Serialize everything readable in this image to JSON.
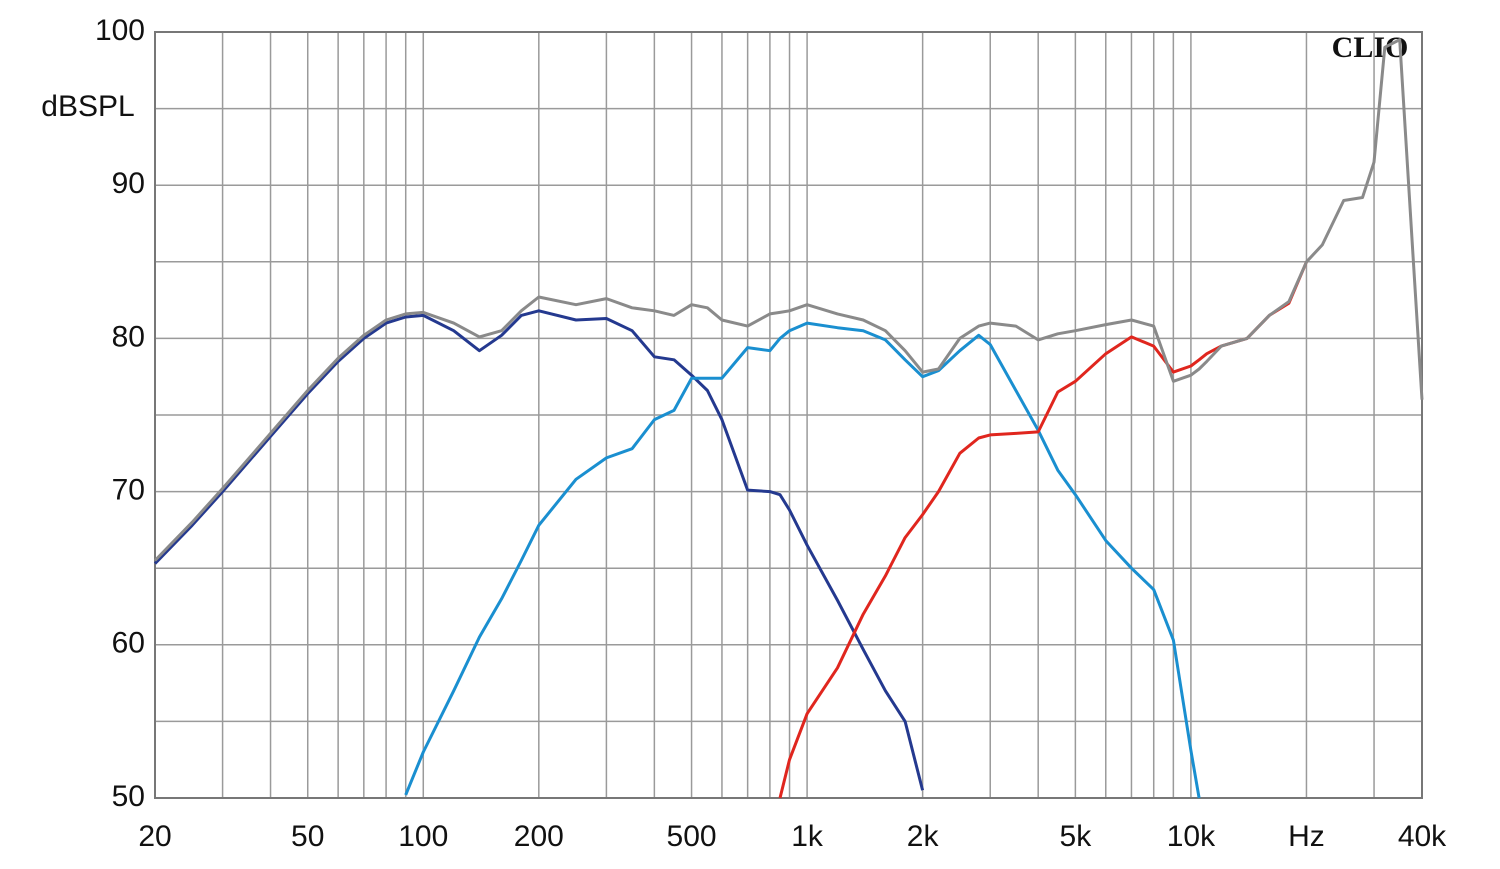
{
  "chart_data": {
    "type": "line",
    "ylabel": "dBSPL",
    "annotation": "CLIO",
    "log_x": true,
    "grid": true,
    "xlim": [
      20,
      40000
    ],
    "ylim": [
      50,
      100
    ],
    "xticks": [
      20,
      50,
      100,
      200,
      500,
      {
        "value": 1000,
        "label": "1k"
      },
      {
        "value": 2000,
        "label": "2k"
      },
      {
        "value": 5000,
        "label": "5k"
      },
      {
        "value": 10000,
        "label": "10k"
      },
      {
        "value": 20000,
        "label": "Hz"
      },
      {
        "value": 40000,
        "label": "40k"
      }
    ],
    "x_minor_ticks": [
      30,
      40,
      60,
      70,
      80,
      90,
      300,
      400,
      600,
      700,
      800,
      900,
      3000,
      4000,
      6000,
      7000,
      8000,
      9000,
      30000
    ],
    "yticks": [
      50,
      60,
      70,
      80,
      90,
      100
    ],
    "y_minor_ticks": [
      55,
      65,
      75,
      85,
      95
    ],
    "x": [
      20,
      25,
      30,
      40,
      50,
      60,
      70,
      80,
      90,
      100,
      120,
      140,
      160,
      180,
      200,
      250,
      300,
      350,
      400,
      450,
      500,
      550,
      600,
      700,
      800,
      850,
      900,
      1000,
      1200,
      1400,
      1600,
      1800,
      2000,
      2200,
      2500,
      2800,
      3000,
      3500,
      4000,
      4500,
      5000,
      6000,
      7000,
      8000,
      9000,
      10000,
      10500,
      11000,
      12000,
      14000,
      16000,
      18000,
      20000,
      22000,
      25000,
      28000,
      30000,
      32000,
      35000,
      38000,
      40000
    ],
    "series": [
      {
        "color": "#24398f",
        "values": [
          65.3,
          67.8,
          70,
          73.6,
          76.4,
          78.5,
          80,
          81,
          81.4,
          81.5,
          80.5,
          79.2,
          80.2,
          81.5,
          81.8,
          81.2,
          81.3,
          80.5,
          78.8,
          78.6,
          77.6,
          76.6,
          74.7,
          70.1,
          70,
          69.8,
          68.8,
          66.5,
          62.9,
          59.7,
          57,
          55,
          50.5,
          null,
          null,
          null,
          null,
          null,
          null,
          null,
          null,
          null,
          null,
          null,
          null,
          null,
          null,
          null,
          null,
          null,
          null,
          null,
          null,
          null,
          null,
          null,
          null,
          null,
          null,
          null,
          null
        ]
      },
      {
        "color": "#1a8fd0",
        "values": [
          null,
          null,
          null,
          null,
          null,
          null,
          null,
          null,
          50.2,
          53,
          57,
          60.5,
          63,
          65.5,
          67.8,
          70.8,
          72.2,
          72.8,
          74.7,
          75.3,
          77.4,
          77.4,
          77.4,
          79.4,
          79.2,
          80,
          80.5,
          81,
          80.7,
          80.5,
          79.9,
          78.6,
          77.5,
          77.9,
          79.2,
          80.2,
          79.6,
          76.6,
          74,
          71.4,
          69.8,
          66.8,
          65,
          63.6,
          60.3,
          53.1,
          50,
          null,
          null,
          null,
          null,
          null,
          null,
          null,
          null,
          null,
          null,
          null,
          null,
          null,
          null
        ]
      },
      {
        "color": "#e0261e",
        "values": [
          null,
          null,
          null,
          null,
          null,
          null,
          null,
          null,
          null,
          null,
          null,
          null,
          null,
          null,
          null,
          null,
          null,
          null,
          null,
          null,
          null,
          null,
          null,
          null,
          null,
          50,
          52.5,
          55.5,
          58.5,
          62,
          64.5,
          67,
          68.5,
          70,
          72.5,
          73.5,
          73.7,
          73.8,
          73.9,
          76.5,
          77.2,
          79,
          80.1,
          79.5,
          77.8,
          78.2,
          78.6,
          79,
          79.5,
          80,
          81.5,
          82.3,
          85,
          null,
          null,
          null,
          null,
          null,
          null,
          null,
          null
        ]
      },
      {
        "color": "#8a8a8a",
        "values": [
          65.5,
          68,
          70.2,
          73.8,
          76.6,
          78.7,
          80.2,
          81.2,
          81.6,
          81.7,
          81,
          80.1,
          80.5,
          81.8,
          82.7,
          82.2,
          82.6,
          82,
          81.8,
          81.5,
          82.2,
          82,
          81.2,
          80.8,
          81.6,
          81.7,
          81.8,
          82.2,
          81.6,
          81.2,
          80.5,
          79.2,
          77.8,
          78,
          80,
          80.8,
          81,
          80.8,
          79.9,
          80.3,
          80.5,
          80.9,
          81.2,
          80.8,
          77.2,
          77.6,
          78,
          78.5,
          79.5,
          80,
          81.5,
          82.4,
          85,
          86.1,
          89,
          89.2,
          91.5,
          99,
          99.5,
          85,
          76
        ]
      }
    ]
  }
}
